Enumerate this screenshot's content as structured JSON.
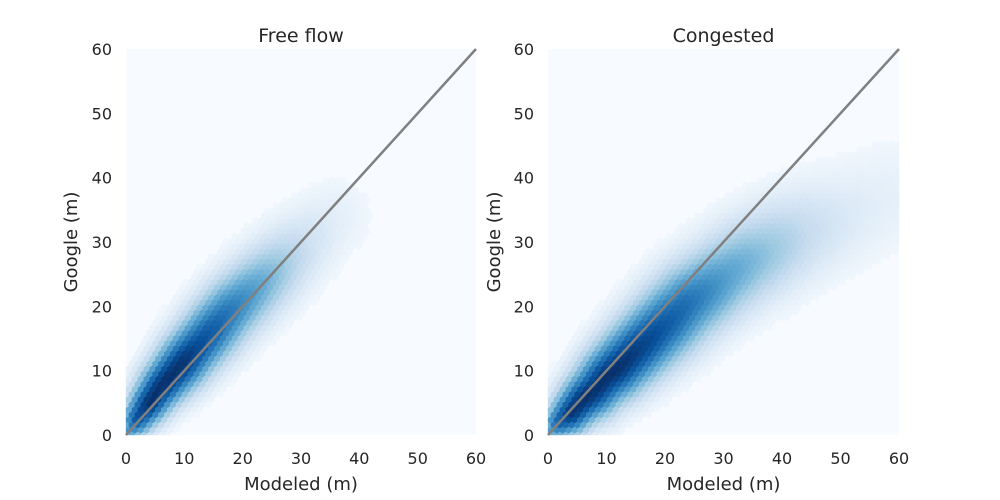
{
  "chart_data": [
    {
      "type": "heatmap",
      "subtype": "hexbin",
      "title": "Free flow",
      "xlabel": "Modeled (m)",
      "ylabel": "Google (m)",
      "xlim": [
        0,
        60
      ],
      "ylim": [
        0,
        60
      ],
      "xticks": [
        "0",
        "10",
        "20",
        "30",
        "40",
        "50",
        "60"
      ],
      "yticks": [
        "0",
        "10",
        "20",
        "30",
        "40",
        "50",
        "60"
      ],
      "colormap": [
        "#f7fbff",
        "#deebf7",
        "#c6dbef",
        "#9ecae1",
        "#6baed6",
        "#4292c6",
        "#2171b5",
        "#08519c",
        "#08306b"
      ],
      "reference_line": {
        "x": [
          0,
          60
        ],
        "y": [
          0,
          60
        ],
        "color": "#808080"
      },
      "density_ridge": {
        "x": [
          0.5,
          2,
          4,
          6,
          8,
          10,
          12,
          15,
          18,
          21,
          24,
          27,
          30,
          33,
          36
        ],
        "y": [
          0.5,
          2.5,
          5,
          7.5,
          9.5,
          11.5,
          13.5,
          16.5,
          19.5,
          22,
          24.5,
          27,
          29.5,
          32,
          34
        ],
        "spread": [
          1.2,
          1.8,
          2.2,
          2.5,
          2.7,
          2.9,
          3.0,
          3.2,
          3.3,
          3.4,
          3.5,
          3.6,
          3.7,
          3.8,
          4.0
        ],
        "intensity": [
          0.5,
          0.85,
          1.0,
          1.0,
          1.0,
          0.98,
          0.9,
          0.8,
          0.68,
          0.55,
          0.42,
          0.28,
          0.17,
          0.1,
          0.06
        ]
      }
    },
    {
      "type": "heatmap",
      "subtype": "hexbin",
      "title": "Congested",
      "xlabel": "Modeled (m)",
      "ylabel": "Google (m)",
      "xlim": [
        0,
        60
      ],
      "ylim": [
        0,
        60
      ],
      "xticks": [
        "0",
        "10",
        "20",
        "30",
        "40",
        "50",
        "60"
      ],
      "yticks": [
        "0",
        "10",
        "20",
        "30",
        "40",
        "50",
        "60"
      ],
      "colormap": [
        "#f7fbff",
        "#deebf7",
        "#c6dbef",
        "#9ecae1",
        "#6baed6",
        "#4292c6",
        "#2171b5",
        "#08519c",
        "#08306b"
      ],
      "reference_line": {
        "x": [
          0,
          60
        ],
        "y": [
          0,
          60
        ],
        "color": "#808080"
      },
      "density_ridge": {
        "x": [
          0.5,
          2,
          4,
          6,
          8,
          10,
          12,
          15,
          18,
          21,
          24,
          27,
          30,
          34,
          38,
          42,
          46,
          50,
          55,
          60
        ],
        "y": [
          0.5,
          2,
          3.5,
          5.5,
          7,
          9,
          10.5,
          13,
          15.5,
          18,
          20.5,
          22.5,
          24.5,
          27,
          29,
          31,
          32.5,
          34,
          36,
          38
        ],
        "spread": [
          1.2,
          1.8,
          2.3,
          2.6,
          2.9,
          3.1,
          3.3,
          3.5,
          3.7,
          3.9,
          4.0,
          4.1,
          4.2,
          4.4,
          4.6,
          4.8,
          5.0,
          5.2,
          5.5,
          5.8
        ],
        "intensity": [
          0.45,
          0.8,
          0.98,
          1.0,
          1.0,
          1.0,
          1.0,
          0.95,
          0.88,
          0.8,
          0.72,
          0.62,
          0.52,
          0.42,
          0.32,
          0.22,
          0.15,
          0.1,
          0.07,
          0.05
        ]
      }
    }
  ]
}
